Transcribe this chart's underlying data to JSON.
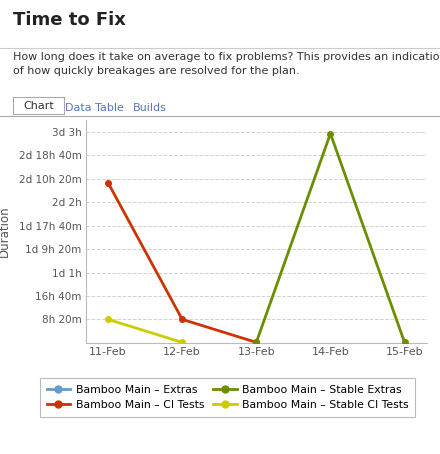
{
  "title": "Time to Fix",
  "subtitle": "How long does it take on average to fix problems? This provides an indication\nof how quickly breakages are resolved for the plan.",
  "tab_chart": "Chart",
  "tab_data": "Data Table",
  "tab_builds": "Builds",
  "ylabel": "Duration",
  "x_ticks": [
    0,
    1,
    2,
    3,
    4
  ],
  "x_tick_labels": [
    "11-Feb",
    "12-Feb",
    "13-Feb",
    "14-Feb",
    "15-Feb"
  ],
  "y_ticks": [
    30000,
    60000,
    90000,
    120000,
    150000,
    180000,
    210000,
    240000,
    270000
  ],
  "y_tick_labels": [
    "8h 20m",
    "16h 40m",
    "1d 1h",
    "1d 9h 20m",
    "1d 17h 40m",
    "2d 2h",
    "2d 10h 20m",
    "2d 18h 40m",
    "3d 3h"
  ],
  "series": [
    {
      "name": "Bamboo Main – Extras",
      "color": "#6699cc",
      "x": [
        0
      ],
      "y": [
        0
      ]
    },
    {
      "name": "Bamboo Main – CI Tests",
      "color": "#cc3300",
      "x": [
        0,
        1,
        2
      ],
      "y": [
        205000,
        30000,
        500
      ]
    },
    {
      "name": "Bamboo Main – Stable Extras",
      "color": "#6b8e00",
      "x": [
        2,
        3,
        4
      ],
      "y": [
        500,
        268000,
        500
      ]
    },
    {
      "name": "Bamboo Main – Stable CI Tests",
      "color": "#cccc00",
      "x": [
        0,
        1
      ],
      "y": [
        30000,
        500
      ]
    }
  ],
  "background_color": "#ffffff",
  "plot_bg_color": "#ffffff",
  "grid_color": "#cccccc",
  "xlim": [
    -0.3,
    4.3
  ],
  "ylim": [
    0,
    285000
  ],
  "title_color": "#222222",
  "subtitle_color": "#333333",
  "tab_active_color": "#333333",
  "tab_inactive_color": "#5577bb"
}
